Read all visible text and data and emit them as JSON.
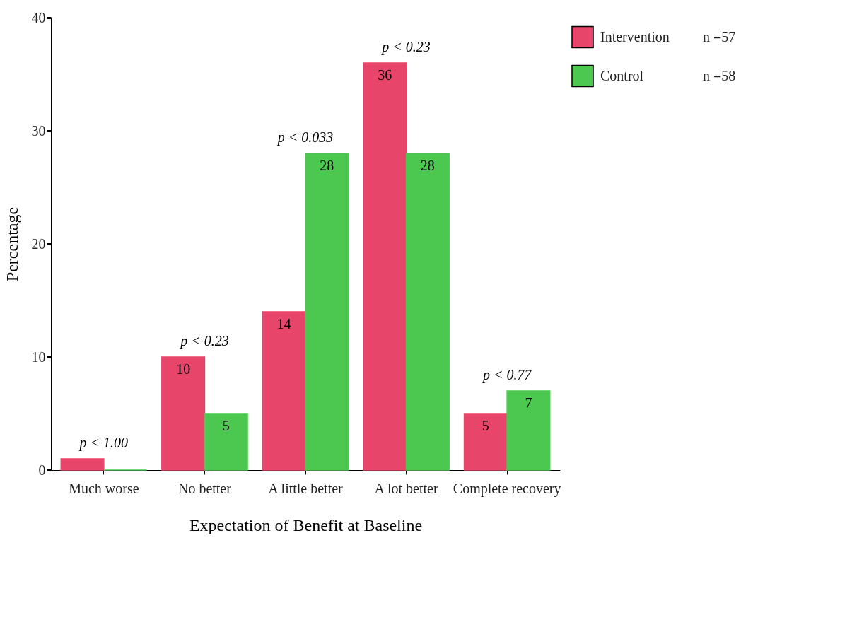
{
  "chart_data": {
    "type": "bar",
    "xlabel": "Expectation of Benefit at Baseline",
    "ylabel": "Percentage",
    "categories": [
      "Much worse",
      "No better",
      "A little better",
      "A lot better",
      "Complete recovery"
    ],
    "series": [
      {
        "name": "Intervention",
        "color": "#e8456a",
        "values": [
          1,
          10,
          14,
          36,
          5
        ],
        "value_labels": [
          null,
          "10",
          "14",
          "36",
          "5"
        ]
      },
      {
        "name": "Control",
        "color": "#4cc850",
        "values": [
          0,
          5,
          28,
          28,
          7
        ],
        "value_labels": [
          null,
          "5",
          "28",
          "28",
          "7"
        ]
      }
    ],
    "ylim": [
      0,
      40
    ],
    "yticks": [
      0,
      10,
      20,
      30,
      40
    ],
    "grid": false,
    "legend": "right",
    "annotations": [
      "p < 1.00",
      "p < 0.23",
      "p < 0.033",
      "p < 0.23",
      "p < 0.77",
      "n =57",
      "n =58"
    ]
  }
}
